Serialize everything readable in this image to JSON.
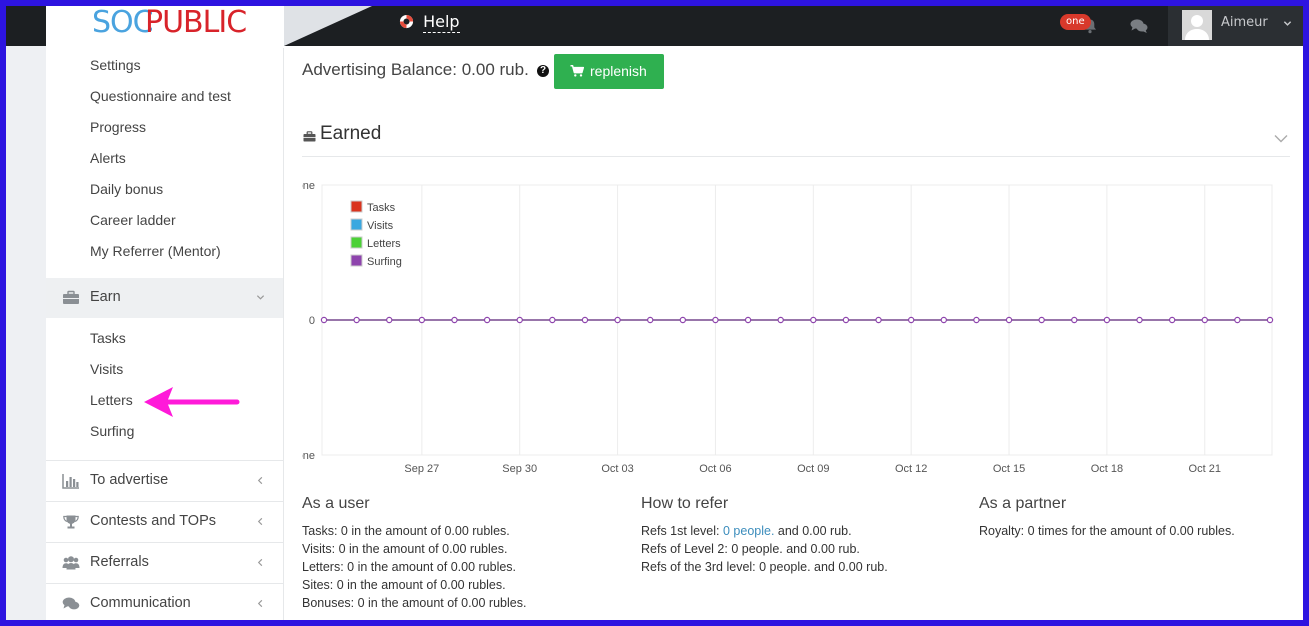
{
  "header": {
    "logo_part1": "SOC",
    "logo_part2": "PUBLIC",
    "help_label": "Help",
    "notification_badge": "one",
    "user_name": "Aimeur"
  },
  "sidebar": {
    "top_items": [
      {
        "label": "Settings"
      },
      {
        "label": "Questionnaire and test"
      },
      {
        "label": "Progress"
      },
      {
        "label": "Alerts"
      },
      {
        "label": "Daily bonus"
      },
      {
        "label": "Career ladder"
      },
      {
        "label": "My Referrer (Mentor)"
      }
    ],
    "earn": {
      "label": "Earn",
      "icon": "briefcase-icon",
      "items": [
        {
          "label": "Tasks"
        },
        {
          "label": "Visits"
        },
        {
          "label": "Letters"
        },
        {
          "label": "Surfing"
        }
      ]
    },
    "groups": [
      {
        "label": "To advertise",
        "icon": "bar-chart-icon"
      },
      {
        "label": "Contests and TOPs",
        "icon": "trophy-icon"
      },
      {
        "label": "Referrals",
        "icon": "users-icon"
      },
      {
        "label": "Communication",
        "icon": "comments-icon"
      }
    ]
  },
  "content": {
    "balance_text": "Advertising Balance: 0.00 rub.",
    "replenish_label": "replenish",
    "earned_title": "Earned"
  },
  "chart_data": {
    "type": "line",
    "title": "",
    "y_tick_labels": [
      "one",
      "0",
      "-one"
    ],
    "ylim": [
      -1,
      1
    ],
    "x_tick_labels": [
      "Sep 27",
      "Sep 30",
      "Oct 03",
      "Oct 06",
      "Oct 09",
      "Oct 12",
      "Oct 15",
      "Oct 18",
      "Oct 21"
    ],
    "x": [
      "Sep 24",
      "Sep 25",
      "Sep 26",
      "Sep 27",
      "Sep 28",
      "Sep 29",
      "Sep 30",
      "Oct 01",
      "Oct 02",
      "Oct 03",
      "Oct 04",
      "Oct 05",
      "Oct 06",
      "Oct 07",
      "Oct 08",
      "Oct 09",
      "Oct 10",
      "Oct 11",
      "Oct 12",
      "Oct 13",
      "Oct 14",
      "Oct 15",
      "Oct 16",
      "Oct 17",
      "Oct 18",
      "Oct 19",
      "Oct 20",
      "Oct 21",
      "Oct 22",
      "Oct 23"
    ],
    "series": [
      {
        "name": "Tasks",
        "color": "#d9341f",
        "values": [
          0,
          0,
          0,
          0,
          0,
          0,
          0,
          0,
          0,
          0,
          0,
          0,
          0,
          0,
          0,
          0,
          0,
          0,
          0,
          0,
          0,
          0,
          0,
          0,
          0,
          0,
          0,
          0,
          0,
          0
        ]
      },
      {
        "name": "Visits",
        "color": "#3ba8e0",
        "values": [
          0,
          0,
          0,
          0,
          0,
          0,
          0,
          0,
          0,
          0,
          0,
          0,
          0,
          0,
          0,
          0,
          0,
          0,
          0,
          0,
          0,
          0,
          0,
          0,
          0,
          0,
          0,
          0,
          0,
          0
        ]
      },
      {
        "name": "Letters",
        "color": "#4cd137",
        "values": [
          0,
          0,
          0,
          0,
          0,
          0,
          0,
          0,
          0,
          0,
          0,
          0,
          0,
          0,
          0,
          0,
          0,
          0,
          0,
          0,
          0,
          0,
          0,
          0,
          0,
          0,
          0,
          0,
          0,
          0
        ]
      },
      {
        "name": "Surfing",
        "color": "#8e44ad",
        "values": [
          0,
          0,
          0,
          0,
          0,
          0,
          0,
          0,
          0,
          0,
          0,
          0,
          0,
          0,
          0,
          0,
          0,
          0,
          0,
          0,
          0,
          0,
          0,
          0,
          0,
          0,
          0,
          0,
          0,
          0
        ]
      }
    ],
    "legend_position": "top-left",
    "grid": true
  },
  "stats": {
    "user": {
      "title": "As a user",
      "lines": [
        "Tasks: 0 in the amount of 0.00 rubles.",
        "Visits: 0 in the amount of 0.00 rubles.",
        "Letters: 0 in the amount of 0.00 rubles.",
        "Sites: 0 in the amount of 0.00 rubles.",
        "Bonuses: 0 in the amount of 0.00 rubles."
      ]
    },
    "refer": {
      "title": "How to refer",
      "l1_prefix": "Refs 1st level: ",
      "l1_link": "0 people.",
      "l1_suffix": " and 0.00 rub.",
      "l2": "Refs of Level 2: 0 people. and 0.00 rub.",
      "l3": "Refs of the 3rd level: 0 people. and 0.00 rub."
    },
    "partner": {
      "title": "As a partner",
      "line": "Royalty: 0 times for the amount of 0.00 rubles."
    }
  },
  "colors": {
    "topbar": "#1c1f22",
    "replenish": "#2fb050",
    "arrow": "#ff1ad9",
    "frame": "#2d14e0"
  }
}
